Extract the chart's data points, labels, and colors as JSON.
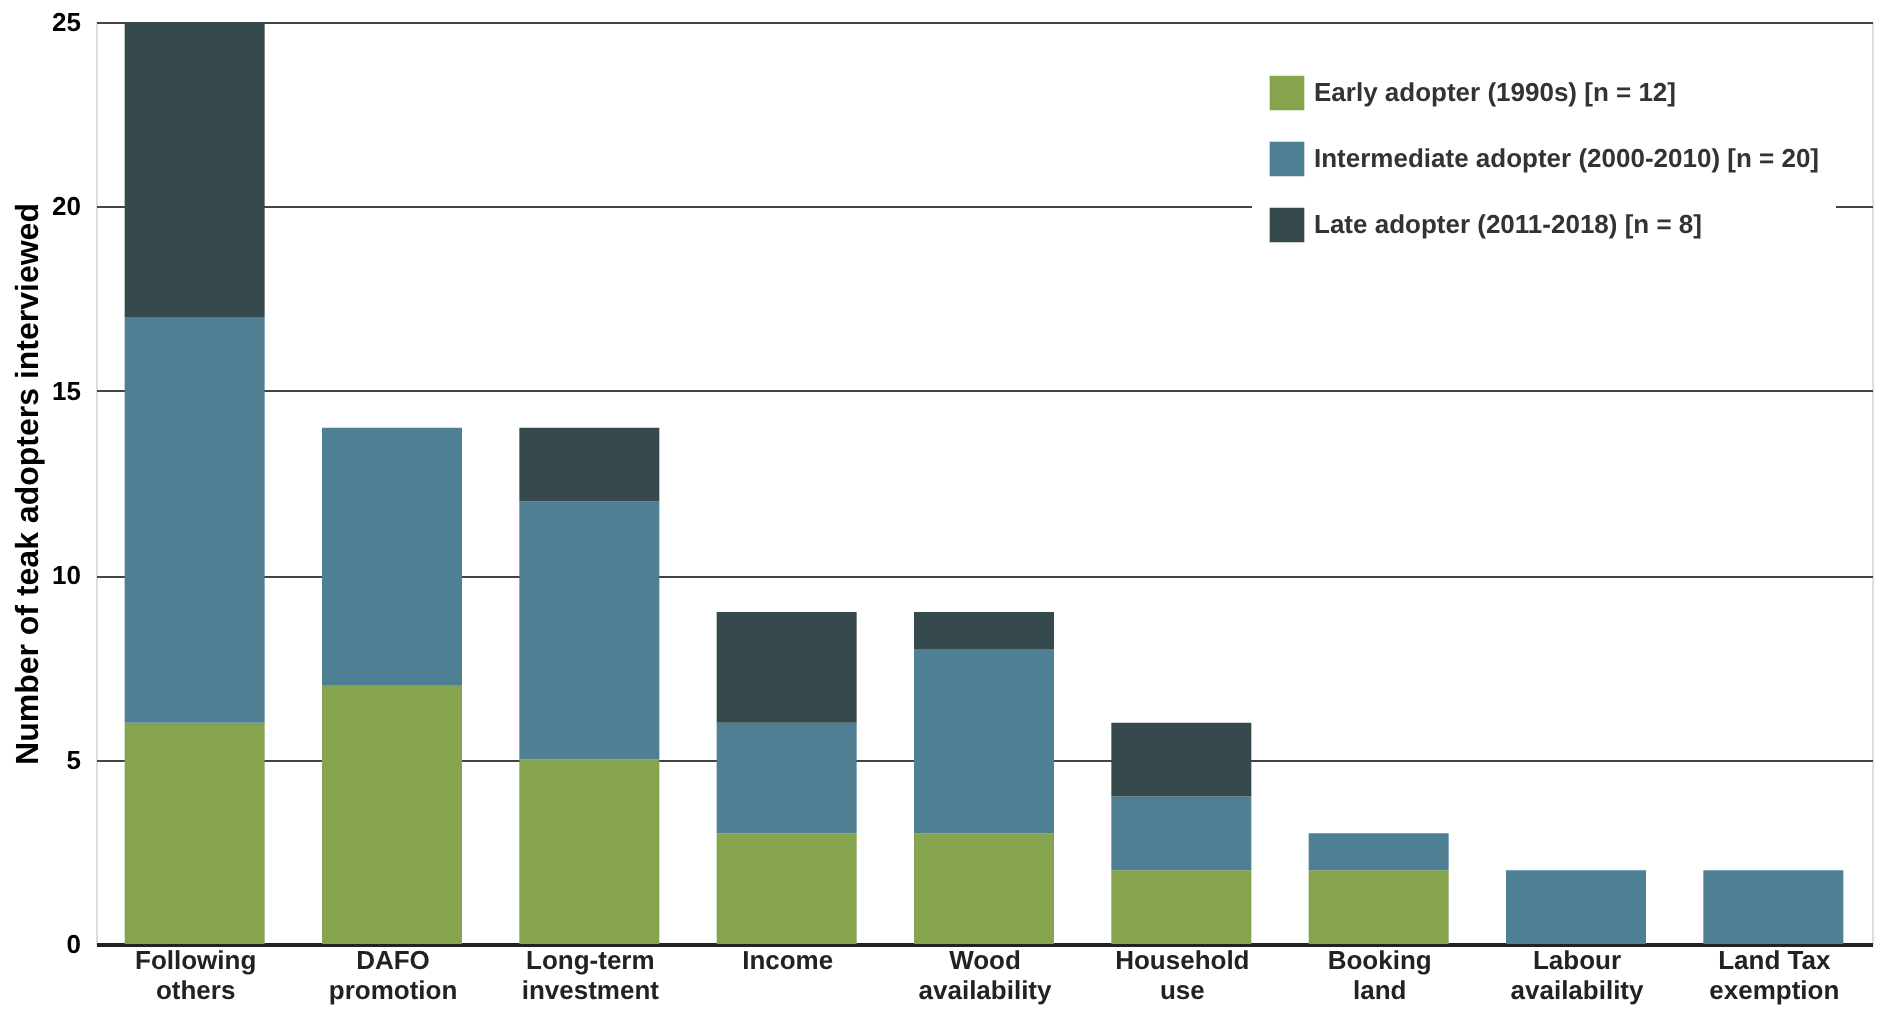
{
  "chart_data": {
    "type": "bar",
    "stacked": true,
    "ylabel": "Number of teak adopters interviewed",
    "categories": [
      "Following others",
      "DAFO promotion",
      "Long-term investment",
      "Income",
      "Wood availability",
      "Household use",
      "Booking land",
      "Labour availability",
      "Land Tax exemption"
    ],
    "series": [
      {
        "name": "Early adopter (1990s) [n = 12]",
        "color": "#86a34e",
        "values": [
          6,
          7,
          5,
          3,
          3,
          2,
          2,
          0,
          0
        ]
      },
      {
        "name": "Intermediate adopter (2000-2010) [n = 20]",
        "color": "#4e7f93",
        "values": [
          11,
          7,
          7,
          3,
          5,
          2,
          1,
          2,
          2
        ]
      },
      {
        "name": "Late adopter (2011-2018) [n = 8]",
        "color": "#364a4d",
        "values": [
          8,
          0,
          2,
          3,
          1,
          2,
          0,
          0,
          0
        ]
      }
    ],
    "ylim": [
      0,
      25
    ],
    "yticks": [
      0,
      5,
      10,
      15,
      20,
      25
    ],
    "grid": "y",
    "legend": "top right"
  }
}
